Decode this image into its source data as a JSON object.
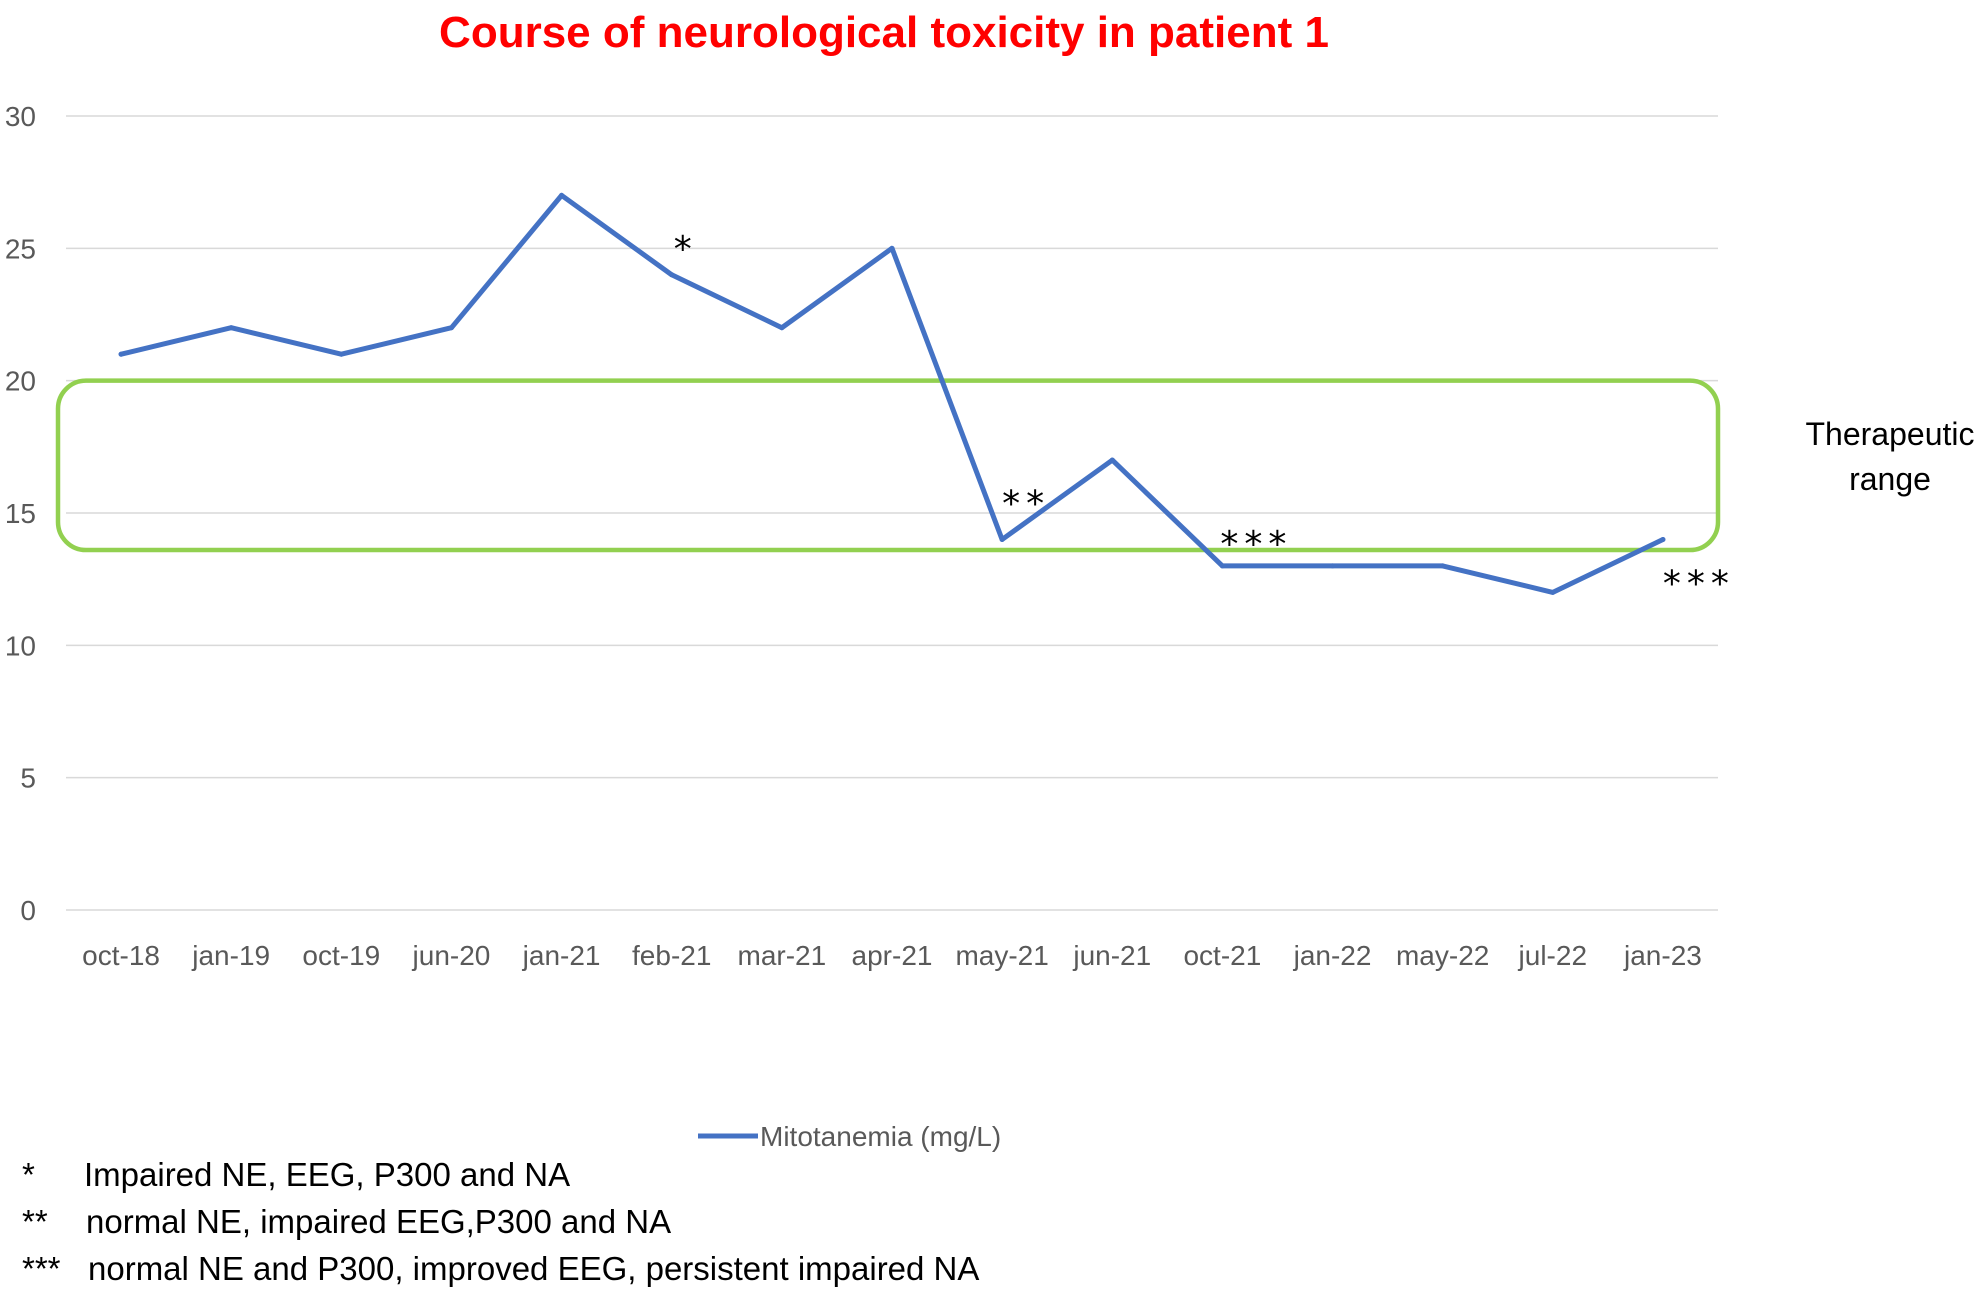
{
  "chart_data": {
    "type": "line",
    "title": "Course of neurological toxicity in patient 1",
    "xlabel": "",
    "ylabel": "",
    "categories": [
      "oct-18",
      "jan-19",
      "oct-19",
      "jun-20",
      "jan-21",
      "feb-21",
      "mar-21",
      "apr-21",
      "may-21",
      "jun-21",
      "oct-21",
      "jan-22",
      "may-22",
      "jul-22",
      "jan-23"
    ],
    "series": [
      {
        "name": "Mitotanemia (mg/L)",
        "values": [
          21,
          22,
          21,
          22,
          27,
          24,
          22,
          25,
          14,
          17,
          13,
          13,
          13,
          12,
          14
        ],
        "color": "#4472c4"
      }
    ],
    "ylim": [
      0,
      30
    ],
    "yticks": [
      "0",
      "5",
      "10",
      "15",
      "20",
      "25",
      "30"
    ],
    "grid": true,
    "legend_position": "bottom",
    "therapeutic_range": {
      "label_line1": "Therapeutic",
      "label_line2": "range",
      "min": 13.6,
      "max": 20,
      "color": "#92d050"
    },
    "annotations": [
      {
        "category": "feb-21",
        "text": "*"
      },
      {
        "category": "may-21",
        "text": "**"
      },
      {
        "category": "oct-21",
        "text": "***"
      },
      {
        "category": "jan-23",
        "text": "***"
      }
    ],
    "footnotes": [
      {
        "symbol": "*",
        "text": "Impaired NE, EEG, P300 and NA"
      },
      {
        "symbol": "**",
        "text": "normal NE, impaired EEG,P300 and NA"
      },
      {
        "symbol": "***",
        "text": "normal NE and P300, improved EEG, persistent impaired NA"
      }
    ]
  }
}
